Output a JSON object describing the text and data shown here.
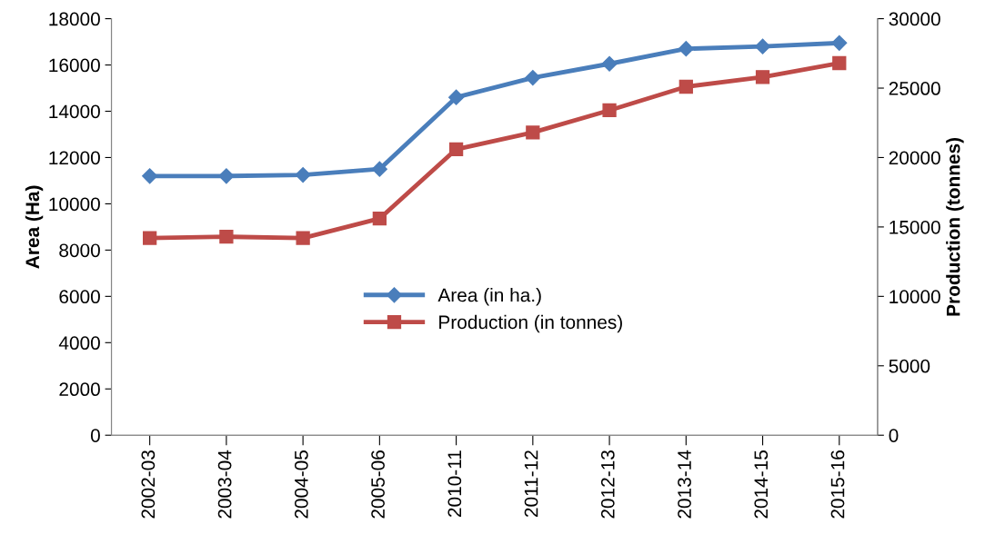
{
  "chart_data": {
    "type": "line",
    "xlabel": null,
    "ylabel": "Area (Ha)",
    "y2label": "Production (tonnes)",
    "categories": [
      "2002-03",
      "2003-04",
      "2004-05",
      "2005-06",
      "2010-11",
      "2011-12",
      "2012-13",
      "2013-14",
      "2014-15",
      "2015-16"
    ],
    "series": [
      {
        "name": "Area (in ha.)",
        "color": "#4a7ebb",
        "marker": "diamond",
        "values": [
          11200,
          11200,
          11250,
          11500,
          14600,
          15450,
          16050,
          16700,
          16800,
          16950
        ]
      },
      {
        "name": "Production (in tonnes)",
        "color": "#be4b48",
        "marker": "square",
        "axis": "y2",
        "values": [
          14200,
          14300,
          14200,
          15600,
          20600,
          21800,
          23400,
          25100,
          25800,
          26800
        ]
      }
    ],
    "ylim": [
      0,
      18000
    ],
    "yticks": [
      0,
      2000,
      4000,
      6000,
      8000,
      10000,
      12000,
      14000,
      16000,
      18000
    ],
    "y2lim": [
      0,
      30000
    ],
    "y2ticks": [
      0,
      5000,
      10000,
      15000,
      20000,
      25000,
      30000
    ],
    "grid": false,
    "legend": "center"
  }
}
